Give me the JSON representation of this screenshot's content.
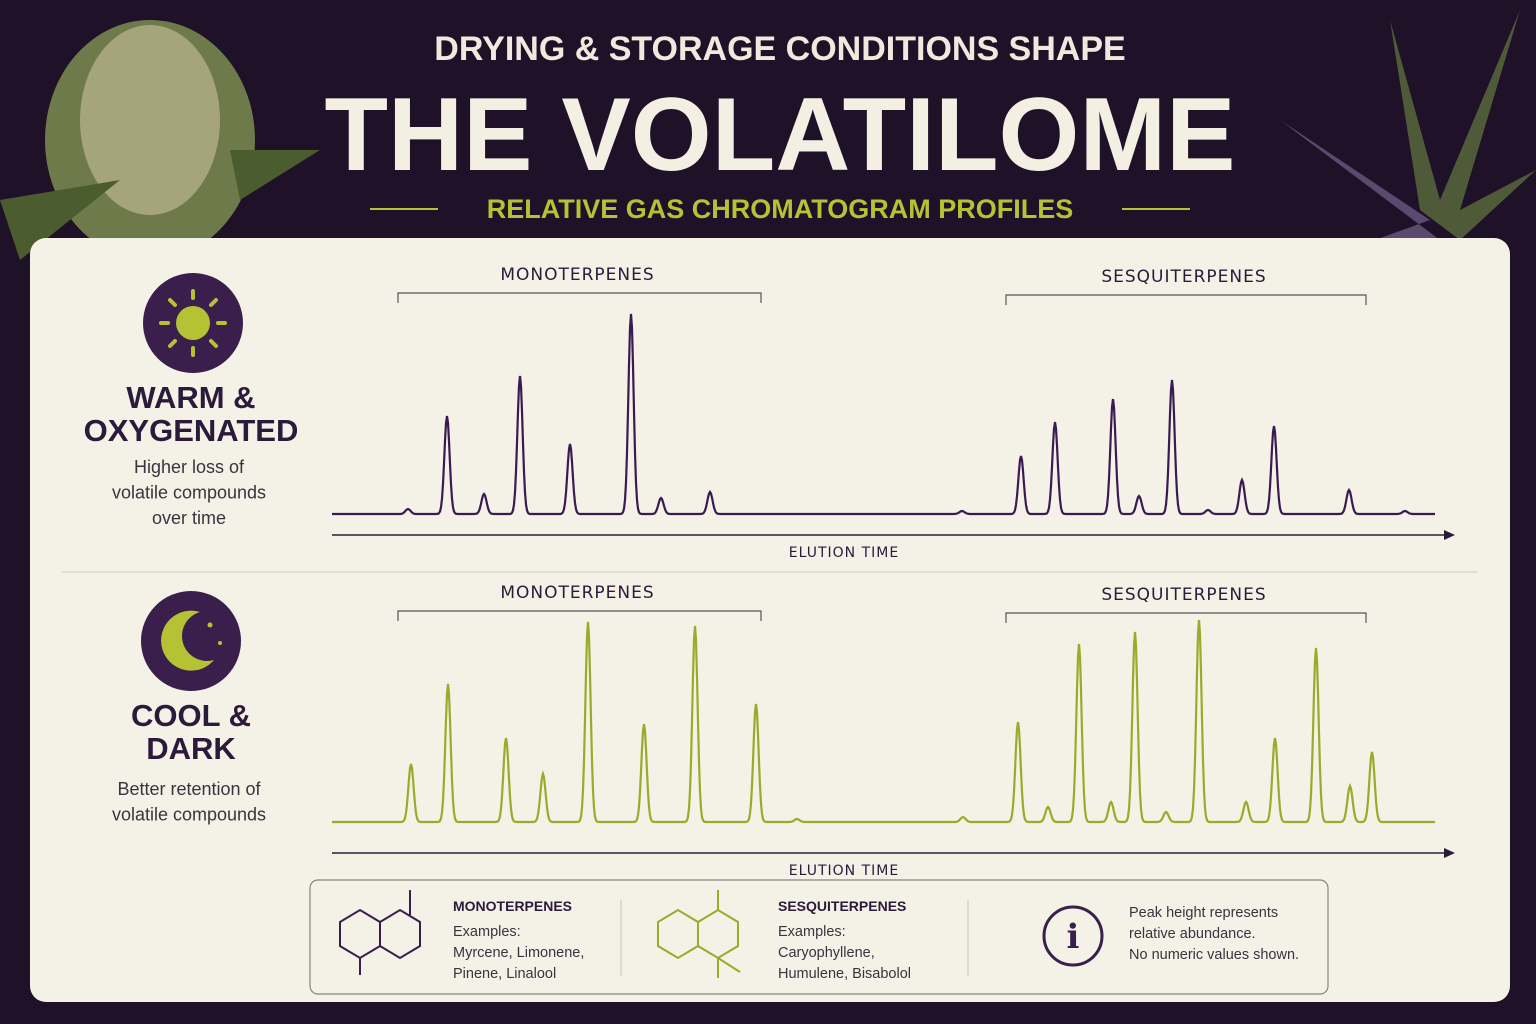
{
  "header": {
    "kicker": "DRYING & STORAGE CONDITIONS SHAPE",
    "title": "THE VOLATILOME",
    "subtitle": "RELATIVE GAS CHROMATOGRAM PROFILES"
  },
  "panels": [
    {
      "condition_lines": [
        "WARM &",
        "OXYGENATED"
      ],
      "description_lines": [
        "Higher loss of",
        "volatile compounds",
        "over time"
      ],
      "groups": [
        "MONOTERPENES",
        "SESQUITERPENES"
      ],
      "x_axis": "ELUTION TIME"
    },
    {
      "condition_lines": [
        "COOL &",
        "DARK"
      ],
      "description_lines": [
        "Better retention of",
        "volatile compounds"
      ],
      "groups": [
        "MONOTERPENES",
        "SESQUITERPENES"
      ],
      "x_axis": "ELUTION TIME"
    }
  ],
  "legend": [
    {
      "title": "MONOTERPENES",
      "lines": [
        "Examples:",
        "Myrcene, Limonene,",
        "Pinene, Linalool"
      ]
    },
    {
      "title": "SESQUITERPENES",
      "lines": [
        "Examples:",
        "Caryophyllene,",
        "Humulene, Bisabolol"
      ]
    }
  ],
  "note_lines": [
    "Peak height represents",
    "relative abundance.",
    "No numeric values shown."
  ]
}
